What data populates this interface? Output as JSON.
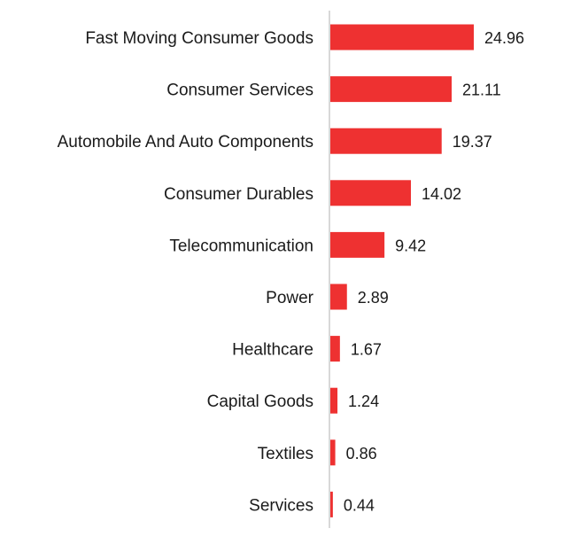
{
  "chart_data": {
    "type": "bar",
    "orientation": "horizontal",
    "categories": [
      "Fast Moving Consumer Goods",
      "Consumer Services",
      "Automobile And Auto Components",
      "Consumer Durables",
      "Telecommunication",
      "Power",
      "Healthcare",
      "Capital Goods",
      "Textiles",
      "Services"
    ],
    "values": [
      24.96,
      21.11,
      19.37,
      14.02,
      9.42,
      2.89,
      1.67,
      1.24,
      0.86,
      0.44
    ],
    "value_labels": [
      "24.96",
      "21.11",
      "19.37",
      "14.02",
      "9.42",
      "2.89",
      "1.67",
      "1.24",
      "0.86",
      "0.44"
    ],
    "title": "",
    "xlabel": "",
    "ylabel": "",
    "xlim": [
      0,
      25
    ],
    "grid": false,
    "legend": "none",
    "bar_color": "#ee3131",
    "axis_color": "#cccccc"
  }
}
